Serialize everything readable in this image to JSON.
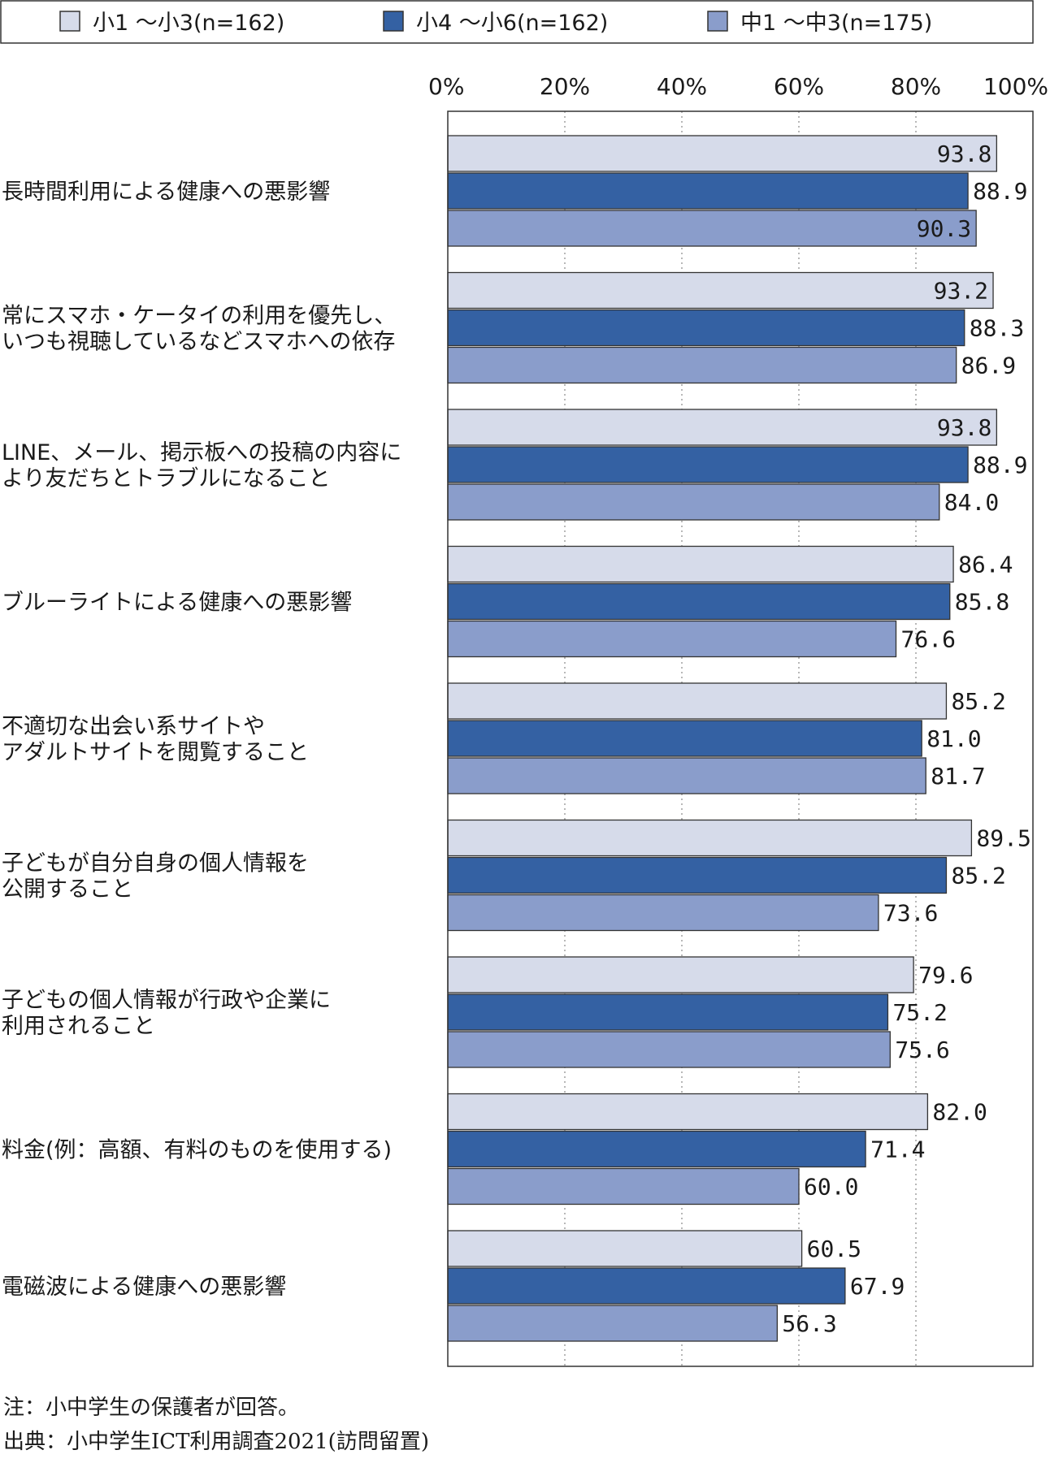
{
  "chart_data": {
    "type": "bar",
    "orientation": "horizontal",
    "legend_position": "top",
    "series": [
      {
        "name": "小1 〜小3(n=162)",
        "color": "#d6dbea",
        "values": [
          93.8,
          93.2,
          93.8,
          86.4,
          85.2,
          89.5,
          79.6,
          82.0,
          60.5
        ]
      },
      {
        "name": "小4 〜小6(n=162)",
        "color": "#3461a3",
        "values": [
          88.9,
          88.3,
          88.9,
          85.8,
          81.0,
          85.2,
          75.2,
          71.4,
          67.9
        ]
      },
      {
        "name": "中1 〜中3(n=175)",
        "color": "#8a9dcb",
        "values": [
          90.3,
          86.9,
          84.0,
          76.6,
          81.7,
          73.6,
          75.6,
          60.0,
          56.3
        ]
      }
    ],
    "categories": [
      [
        "長時間利用による健康への悪影響"
      ],
      [
        "常にスマホ・ケータイの利用を優先し、",
        "いつも視聴しているなどスマホへの依存"
      ],
      [
        "LINE、メール、掲示板への投稿の内容に",
        "より友だちとトラブルになること"
      ],
      [
        "ブルーライトによる健康への悪影響"
      ],
      [
        "不適切な出会い系サイトや",
        "アダルトサイトを閲覧すること"
      ],
      [
        "子どもが自分自身の個人情報を",
        "公開すること"
      ],
      [
        "子どもの個人情報が行政や企業に",
        "利用されること"
      ],
      [
        "料金(例：高額、有料のものを使用する)"
      ],
      [
        "電磁波による健康への悪影響"
      ]
    ],
    "x_ticks": [
      "0%",
      "20%",
      "40%",
      "60%",
      "80%",
      "100%"
    ],
    "xlim": [
      0,
      100
    ],
    "grid": true
  },
  "notes": {
    "note": "注：小中学生の保護者が回答。",
    "source": "出典：小中学生ICT利用調査2021(訪問留置)"
  }
}
